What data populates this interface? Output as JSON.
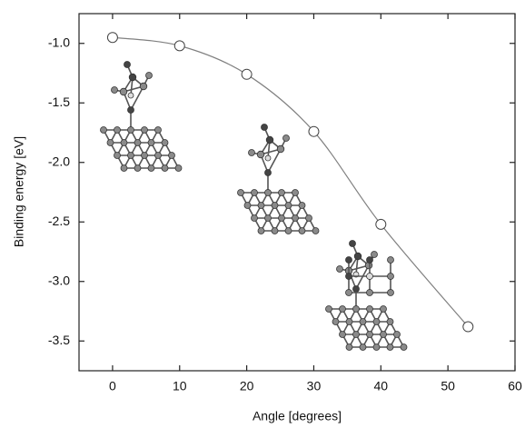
{
  "chart_data": {
    "type": "line",
    "x_label": "Angle [degrees]",
    "y_label": "Binding energy [eV]",
    "series": [
      {
        "color": "#808080",
        "x": [
          0,
          10,
          20,
          30,
          40,
          53
        ],
        "values": [
          -0.95,
          -1.02,
          -1.26,
          -1.74,
          -2.52,
          -3.38
        ]
      }
    ],
    "xlim": [
      -5,
      60
    ],
    "ylim": [
      -3.75,
      -0.75
    ],
    "xticks": [
      0,
      10,
      20,
      30,
      40,
      50,
      60
    ],
    "yticks": [
      {
        "value": -1,
        "label": "-1.0"
      },
      -1.5,
      {
        "value": -2,
        "label": "-2.0"
      },
      -2.5,
      {
        "value": -3,
        "label": "-3.0"
      },
      -3.5
    ],
    "marker": "open-circle",
    "grid": false
  }
}
